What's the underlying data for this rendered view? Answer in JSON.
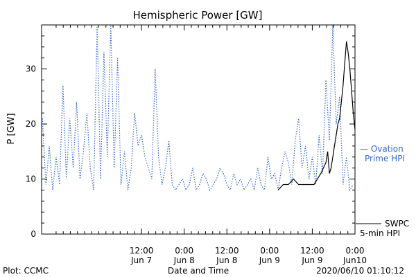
{
  "colors": {
    "swpc": "#000000",
    "ovation": "#3366cc",
    "axis": "#000000"
  },
  "footer": {
    "plot_source": "Plot: CCMC",
    "timestamp": "2020/06/10 01:10:12"
  },
  "legend_text": {
    "ovation_line1": "— Ovation",
    "ovation_line2": "Prime HPI",
    "swpc_line1": "SWPC",
    "swpc_line2": "5-min HPI"
  },
  "chart_data": {
    "type": "line",
    "title": "Hemispheric Power [GW]",
    "xlabel": "Date and Time",
    "ylabel": "P [GW]",
    "xlim": [
      -0.67,
      3.0
    ],
    "ylim": [
      0,
      38
    ],
    "xticks": [
      {
        "value": 0.5,
        "time": "12:00",
        "date": "Jun 7"
      },
      {
        "value": 1.0,
        "time": "0:00",
        "date": "Jun 8"
      },
      {
        "value": 1.5,
        "time": "12:00",
        "date": "Jun 8"
      },
      {
        "value": 2.0,
        "time": "0:00",
        "date": "Jun 9"
      },
      {
        "value": 2.5,
        "time": "12:00",
        "date": "Jun 9"
      },
      {
        "value": 3.0,
        "time": "0:00",
        "date": "Jun10"
      }
    ],
    "yticks": [
      0,
      10,
      20,
      30
    ],
    "series": [
      {
        "name": "Ovation Prime HPI",
        "style": "dotted",
        "color": "#3366cc",
        "x": [
          -0.66,
          -0.62,
          -0.58,
          -0.54,
          -0.5,
          -0.46,
          -0.42,
          -0.38,
          -0.34,
          -0.3,
          -0.26,
          -0.22,
          -0.18,
          -0.14,
          -0.1,
          -0.06,
          -0.02,
          0.02,
          0.06,
          0.1,
          0.14,
          0.18,
          0.22,
          0.26,
          0.3,
          0.34,
          0.38,
          0.42,
          0.46,
          0.5,
          0.54,
          0.58,
          0.62,
          0.66,
          0.7,
          0.74,
          0.78,
          0.82,
          0.86,
          0.9,
          0.94,
          0.98,
          1.02,
          1.06,
          1.1,
          1.14,
          1.18,
          1.22,
          1.26,
          1.3,
          1.34,
          1.38,
          1.42,
          1.46,
          1.5,
          1.54,
          1.58,
          1.62,
          1.66,
          1.7,
          1.74,
          1.78,
          1.82,
          1.86,
          1.9,
          1.94,
          1.98,
          2.02,
          2.06,
          2.1,
          2.14,
          2.18,
          2.22,
          2.26,
          2.3,
          2.34,
          2.38,
          2.42,
          2.46,
          2.5,
          2.54,
          2.58,
          2.62,
          2.66,
          2.7,
          2.74,
          2.78,
          2.82,
          2.86,
          2.9,
          2.94,
          2.98
        ],
        "values": [
          21,
          9,
          16,
          8,
          14,
          9,
          27,
          10,
          21,
          12,
          24,
          10,
          15,
          22,
          12,
          8,
          38,
          10,
          33,
          14,
          38,
          12,
          32,
          9,
          15,
          8,
          12,
          22,
          16,
          18,
          14,
          12,
          10,
          30,
          14,
          9,
          12,
          17,
          9,
          8,
          9,
          10,
          8,
          9,
          12,
          8,
          9,
          11,
          10,
          8,
          9,
          10,
          12,
          11,
          9,
          8,
          11,
          9,
          10,
          8,
          9,
          10,
          8,
          12,
          9,
          8,
          14,
          10,
          11,
          8,
          12,
          15,
          13,
          9,
          17,
          21,
          12,
          16,
          10,
          14,
          9,
          18,
          11,
          28,
          17,
          38,
          20,
          25,
          9,
          14,
          8,
          9
        ]
      },
      {
        "name": "SWPC 5-min HPI",
        "style": "solid",
        "color": "#000000",
        "x": [
          2.1,
          2.16,
          2.22,
          2.28,
          2.34,
          2.4,
          2.46,
          2.52,
          2.56,
          2.6,
          2.63,
          2.66,
          2.68,
          2.7,
          2.72,
          2.74,
          2.76,
          2.78,
          2.8,
          2.82,
          2.84,
          2.86,
          2.88,
          2.9,
          2.92,
          2.94,
          2.96,
          2.98,
          3.0
        ],
        "values": [
          8,
          9,
          9,
          10,
          9,
          9,
          9,
          9,
          10,
          11,
          12,
          13,
          15,
          11,
          12,
          14,
          16,
          18,
          20,
          21,
          24,
          27,
          31,
          35,
          33,
          30,
          26,
          22,
          19
        ]
      }
    ]
  }
}
